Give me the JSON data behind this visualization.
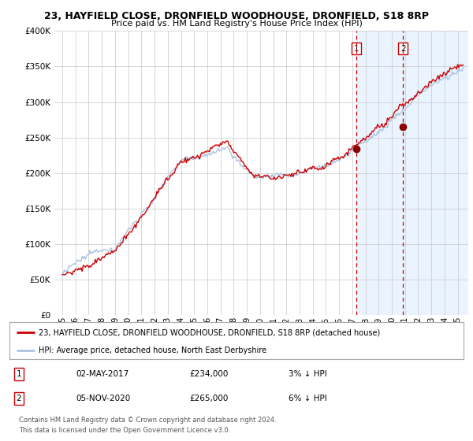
{
  "title": "23, HAYFIELD CLOSE, DRONFIELD WOODHOUSE, DRONFIELD, S18 8RP",
  "subtitle": "Price paid vs. HM Land Registry's House Price Index (HPI)",
  "legend_line1": "23, HAYFIELD CLOSE, DRONFIELD WOODHOUSE, DRONFIELD, S18 8RP (detached house)",
  "legend_line2": "HPI: Average price, detached house, North East Derbyshire",
  "table_row1": [
    "1",
    "02-MAY-2017",
    "£234,000",
    "3% ↓ HPI"
  ],
  "table_row2": [
    "2",
    "05-NOV-2020",
    "£265,000",
    "6% ↓ HPI"
  ],
  "footnote1": "Contains HM Land Registry data © Crown copyright and database right 2024.",
  "footnote2": "This data is licensed under the Open Government Licence v3.0.",
  "ylim": [
    0,
    400000
  ],
  "yticks": [
    0,
    50000,
    100000,
    150000,
    200000,
    250000,
    300000,
    350000,
    400000
  ],
  "sale1_year": 2017.33,
  "sale1_price": 234000,
  "sale2_year": 2020.84,
  "sale2_price": 265000,
  "hpi_color": "#aac4e2",
  "price_color": "#cc0000",
  "sale_dot_color": "#8b0000",
  "vline_color": "#cc0000",
  "shade_color": "#ddeeff",
  "grid_color": "#c8c8c8",
  "bg_color": "#ffffff"
}
